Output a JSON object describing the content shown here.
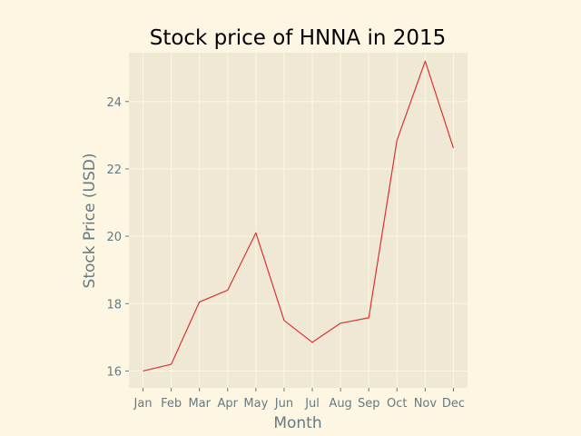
{
  "chart_data": {
    "type": "line",
    "title": "Stock price of HNNA in 2015",
    "xlabel": "Month",
    "ylabel": "Stock Price (USD)",
    "categories": [
      "Jan",
      "Feb",
      "Mar",
      "Apr",
      "May",
      "Jun",
      "Jul",
      "Aug",
      "Sep",
      "Oct",
      "Nov",
      "Dec"
    ],
    "series": [
      {
        "values": [
          16.0,
          16.2,
          18.05,
          18.4,
          20.1,
          17.5,
          16.85,
          17.42,
          17.58,
          22.85,
          25.2,
          22.62
        ],
        "color": "#dc322f"
      }
    ],
    "ylim": [
      15.5,
      25.45
    ],
    "yticks": [
      16,
      18,
      20,
      22,
      24
    ],
    "grid": true,
    "legend": false,
    "colors": {
      "figure_background": "#fdf6e3",
      "plot_background": "#eee8d5",
      "grid": "#fdf6e3",
      "text": "#657b83"
    }
  }
}
